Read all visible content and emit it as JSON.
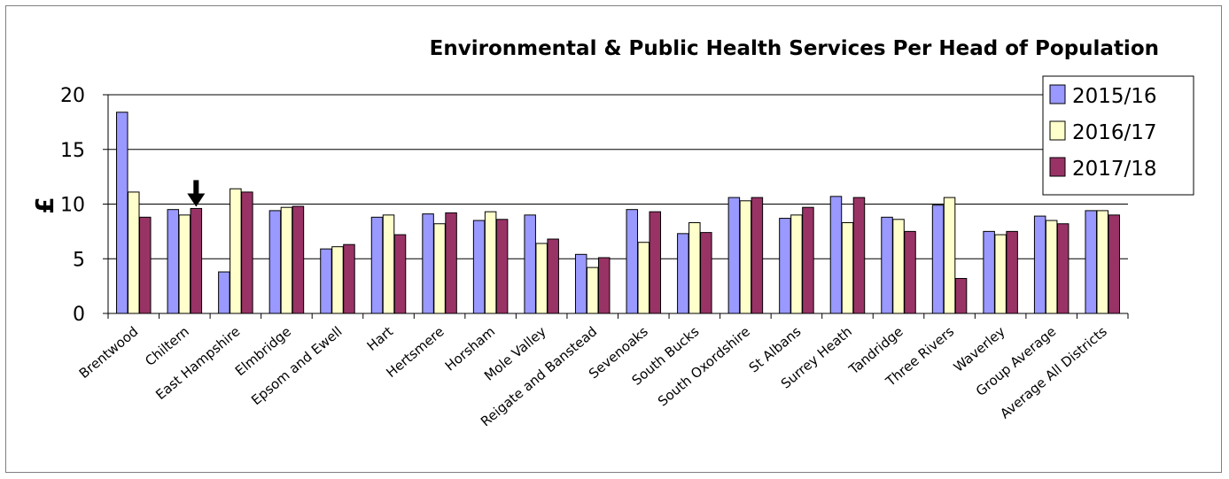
{
  "chart_data": {
    "type": "bar",
    "title": "Environmental & Public Health Services Per Head of Population",
    "xlabel": "",
    "ylabel": "£",
    "ylim": [
      0,
      20
    ],
    "yticks": [
      "0",
      "5",
      "10",
      "15",
      "20"
    ],
    "grid": true,
    "legend_position": "top-right",
    "categories": [
      "Brentwood",
      "Chiltern",
      "East Hampshire",
      "Elmbridge",
      "Epsom and Ewell",
      "Hart",
      "Hertsmere",
      "Horsham",
      "Mole Valley",
      "Reigate and Banstead",
      "Sevenoaks",
      "South Bucks",
      "South Oxordshire",
      "St Albans",
      "Surrey Heath",
      "Tandridge",
      "Three Rivers",
      "Waverley",
      "Group Average",
      "Average All Districts"
    ],
    "series": [
      {
        "name": "2015/16",
        "color": "#9999ff",
        "values": [
          18.4,
          9.5,
          3.8,
          9.4,
          5.9,
          8.8,
          9.1,
          8.5,
          9.0,
          5.4,
          9.5,
          7.3,
          10.6,
          8.7,
          10.7,
          8.8,
          9.9,
          7.5,
          8.9,
          9.4
        ]
      },
      {
        "name": "2016/17",
        "color": "#ffffcc",
        "values": [
          11.1,
          9.0,
          11.4,
          9.7,
          6.1,
          9.0,
          8.2,
          9.3,
          6.4,
          4.2,
          6.5,
          8.3,
          10.3,
          9.0,
          8.3,
          8.6,
          10.6,
          7.2,
          8.5,
          9.4
        ]
      },
      {
        "name": "2017/18",
        "color": "#993366",
        "values": [
          8.8,
          9.6,
          11.1,
          9.8,
          6.3,
          7.2,
          9.2,
          8.6,
          6.8,
          5.1,
          9.3,
          7.4,
          10.6,
          9.7,
          10.6,
          7.5,
          3.2,
          7.5,
          8.2,
          9.0
        ]
      }
    ],
    "annotation": {
      "type": "arrow-down",
      "category": "Chiltern",
      "series": "2017/18"
    }
  }
}
